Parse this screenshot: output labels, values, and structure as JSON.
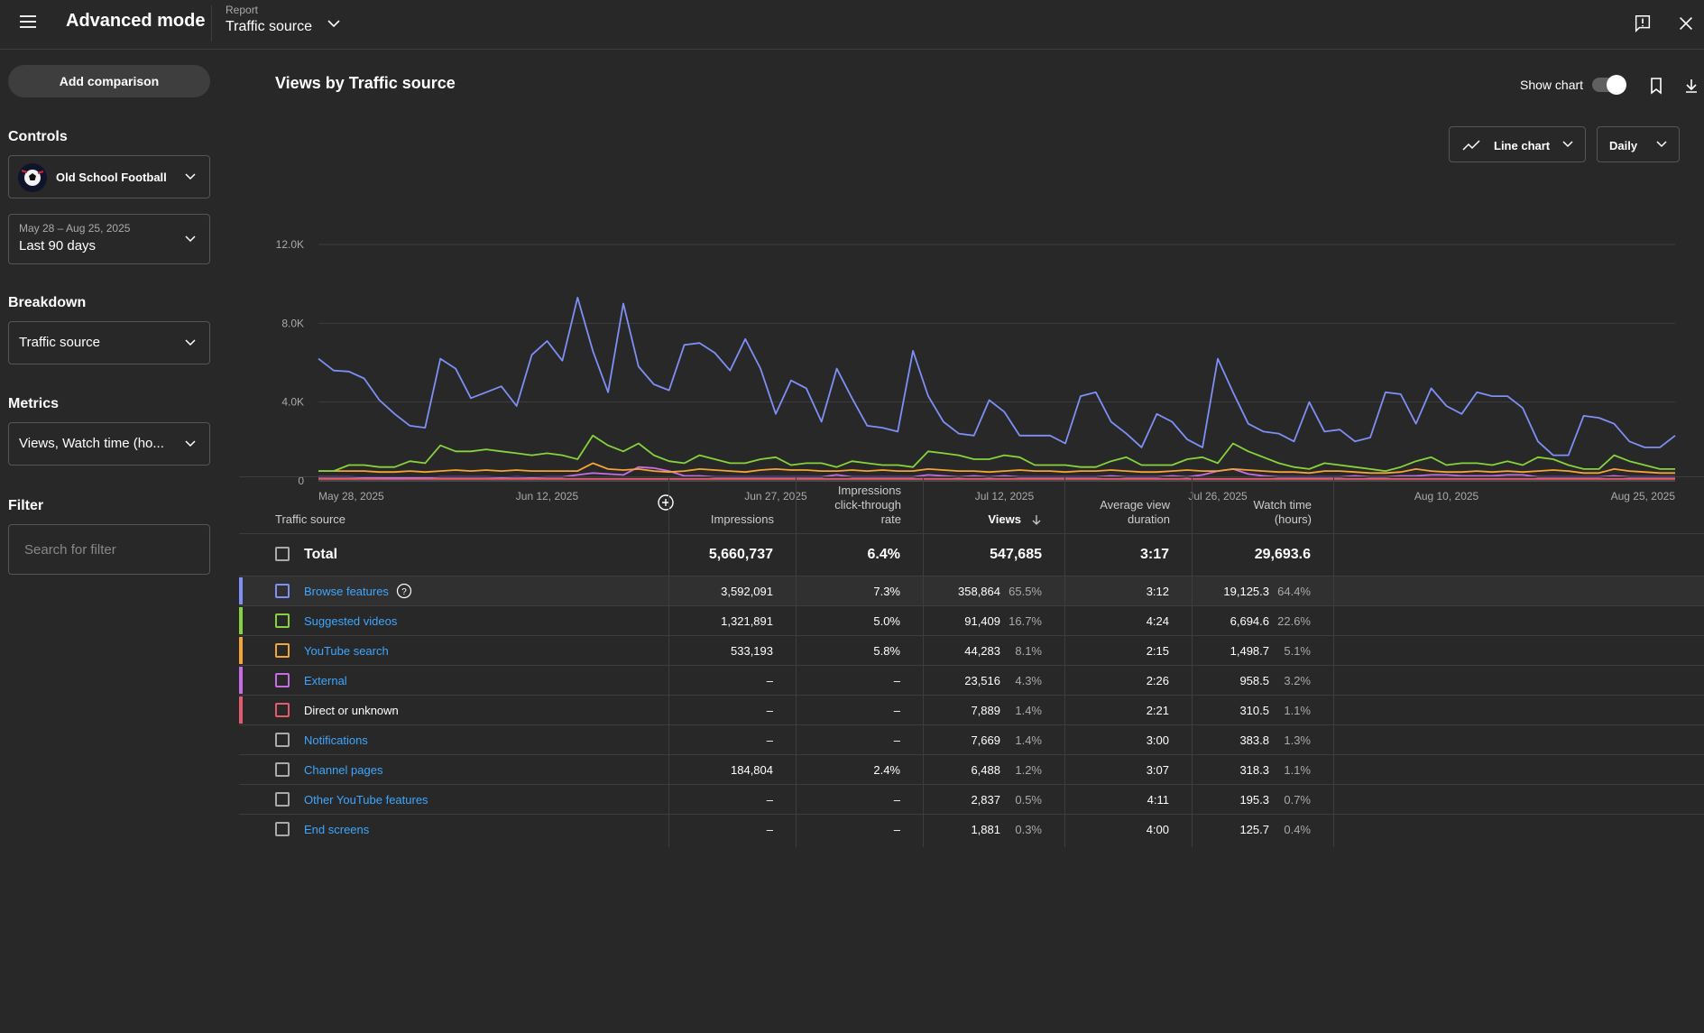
{
  "header": {
    "app_title": "Advanced mode",
    "report_label": "Report",
    "report_value": "Traffic source"
  },
  "sidebar": {
    "add_comparison": "Add comparison",
    "controls_title": "Controls",
    "channel_name": "Old School Football",
    "date_range_sub": "May 28 – Aug 25, 2025",
    "date_range_main": "Last 90 days",
    "breakdown_title": "Breakdown",
    "breakdown_value": "Traffic source",
    "metrics_title": "Metrics",
    "metrics_value": "Views, Watch time (ho...",
    "filter_title": "Filter",
    "filter_placeholder": "Search for filter"
  },
  "chart_section": {
    "title": "Views by Traffic source",
    "show_chart_label": "Show chart",
    "show_chart_on": true,
    "chart_type_label": "Line chart",
    "interval_label": "Daily"
  },
  "chart_data": {
    "type": "line",
    "ylim": [
      0,
      12000
    ],
    "yticks": [
      "0",
      "4.0K",
      "8.0K",
      "12.0K"
    ],
    "ytick_values": [
      0,
      4000,
      8000,
      12000
    ],
    "xticks": [
      "May 28, 2025",
      "Jun 12, 2025",
      "Jun 27, 2025",
      "Jul 12, 2025",
      "Jul 26, 2025",
      "Aug 10, 2025",
      "Aug 25, 2025"
    ],
    "xtick_index": [
      0,
      15,
      30,
      45,
      59,
      74,
      89
    ],
    "grid": true,
    "series": [
      {
        "color": "#7e8ff5",
        "values": [
          6200,
          5600,
          5550,
          5200,
          4100,
          3400,
          2800,
          2700,
          6200,
          5700,
          4200,
          4500,
          4800,
          3800,
          6400,
          7100,
          6100,
          9300,
          6600,
          4500,
          9000,
          5800,
          4900,
          4600,
          6900,
          7000,
          6500,
          5600,
          7200,
          5700,
          3400,
          5100,
          4700,
          3000,
          5700,
          4200,
          2800,
          2700,
          2500,
          6600,
          4300,
          3000,
          2400,
          2300,
          4100,
          3500,
          2300,
          2300,
          2300,
          1900,
          4300,
          4500,
          3000,
          2400,
          1700,
          3400,
          3000,
          2100,
          1700,
          6200,
          4500,
          2900,
          2500,
          2400,
          2000,
          4000,
          2500,
          2600,
          2000,
          2200,
          4500,
          4400,
          2900,
          4700,
          3800,
          3400,
          4500,
          4300,
          4300,
          3700,
          2000,
          1300,
          1300,
          3300,
          3200,
          2900,
          2000,
          1700,
          1700,
          2300
        ]
      },
      {
        "color": "#86d33c",
        "values": [
          500,
          500,
          800,
          800,
          700,
          700,
          1000,
          900,
          1800,
          1500,
          1500,
          1600,
          1500,
          1400,
          1300,
          1400,
          1300,
          1100,
          2300,
          1800,
          1500,
          1900,
          1300,
          1000,
          900,
          1300,
          1100,
          900,
          900,
          1100,
          1200,
          800,
          900,
          900,
          700,
          1000,
          900,
          800,
          800,
          700,
          1500,
          1400,
          1300,
          1100,
          1100,
          1300,
          1200,
          800,
          800,
          800,
          700,
          700,
          1000,
          1200,
          800,
          800,
          800,
          1100,
          1200,
          900,
          1900,
          1500,
          1200,
          900,
          700,
          600,
          900,
          800,
          700,
          600,
          500,
          700,
          1000,
          1200,
          800,
          900,
          900,
          800,
          1000,
          800,
          1200,
          1100,
          800,
          600,
          600,
          1300,
          1000,
          800,
          600,
          600
        ]
      },
      {
        "color": "#f3a535",
        "values": [
          500,
          500,
          500,
          500,
          450,
          450,
          500,
          450,
          500,
          550,
          500,
          550,
          500,
          550,
          500,
          500,
          500,
          500,
          900,
          600,
          550,
          600,
          500,
          450,
          500,
          600,
          550,
          500,
          450,
          550,
          600,
          550,
          550,
          500,
          500,
          550,
          500,
          550,
          500,
          500,
          600,
          550,
          500,
          500,
          450,
          500,
          550,
          500,
          500,
          450,
          500,
          500,
          550,
          500,
          450,
          450,
          500,
          550,
          500,
          500,
          600,
          550,
          500,
          450,
          450,
          400,
          500,
          500,
          450,
          400,
          400,
          450,
          600,
          500,
          450,
          450,
          500,
          450,
          500,
          450,
          500,
          550,
          500,
          400,
          400,
          600,
          500,
          450,
          400,
          400
        ]
      },
      {
        "color": "#c86be6",
        "values": [
          200,
          200,
          200,
          180,
          160,
          150,
          170,
          160,
          200,
          200,
          200,
          200,
          180,
          200,
          180,
          200,
          200,
          300,
          400,
          350,
          300,
          700,
          650,
          500,
          250,
          250,
          200,
          200,
          200,
          200,
          200,
          200,
          200,
          200,
          300,
          200,
          200,
          200,
          200,
          200,
          300,
          250,
          200,
          250,
          200,
          250,
          200,
          200,
          200,
          200,
          200,
          200,
          250,
          200,
          200,
          200,
          250,
          200,
          300,
          500,
          600,
          350,
          250,
          200,
          200,
          200,
          200,
          200,
          250,
          200,
          200,
          250,
          250,
          300,
          300,
          250,
          250,
          250,
          300,
          300,
          200,
          200,
          200,
          200,
          200,
          250,
          200,
          200,
          200,
          200
        ]
      },
      {
        "color": "#e35c6d",
        "values": [
          100,
          100,
          100,
          100,
          100,
          100,
          100,
          100,
          100,
          100,
          100,
          100,
          100,
          100,
          100,
          100,
          100,
          100,
          100,
          100,
          100,
          100,
          100,
          100,
          100,
          100,
          100,
          100,
          100,
          100,
          100,
          100,
          100,
          100,
          100,
          100,
          100,
          100,
          100,
          100,
          100,
          100,
          100,
          100,
          100,
          100,
          100,
          100,
          100,
          100,
          100,
          100,
          100,
          100,
          100,
          100,
          100,
          100,
          100,
          100,
          100,
          100,
          100,
          100,
          100,
          100,
          100,
          100,
          100,
          100,
          100,
          100,
          100,
          100,
          100,
          100,
          100,
          100,
          100,
          100,
          100,
          100,
          100,
          100,
          100,
          100,
          100,
          100,
          100,
          100
        ]
      }
    ]
  },
  "table": {
    "headers": {
      "traffic_source": "Traffic source",
      "impressions": "Impressions",
      "ctr_line1": "Impressions",
      "ctr_line2": "click-through",
      "ctr_line3": "rate",
      "views": "Views",
      "avd_line1": "Average view",
      "avd_line2": "duration",
      "wt_line1": "Watch time",
      "wt_line2": "(hours)"
    },
    "total": {
      "label": "Total",
      "impressions": "5,660,737",
      "ctr": "6.4%",
      "views": "547,685",
      "avd": "3:17",
      "watch_time": "29,693.6"
    },
    "rows": [
      {
        "name": "Browse features",
        "link": true,
        "color": "#7e8ff5",
        "impressions": "3,592,091",
        "ctr": "7.3%",
        "views": "358,864",
        "views_pct": "65.5%",
        "avd": "3:12",
        "watch_time": "19,125.3",
        "wt_pct": "64.4%"
      },
      {
        "name": "Suggested videos",
        "link": true,
        "color": "#86d33c",
        "impressions": "1,321,891",
        "ctr": "5.0%",
        "views": "91,409",
        "views_pct": "16.7%",
        "avd": "4:24",
        "watch_time": "6,694.6",
        "wt_pct": "22.6%"
      },
      {
        "name": "YouTube search",
        "link": true,
        "color": "#f3a535",
        "impressions": "533,193",
        "ctr": "5.8%",
        "views": "44,283",
        "views_pct": "8.1%",
        "avd": "2:15",
        "watch_time": "1,498.7",
        "wt_pct": "5.1%"
      },
      {
        "name": "External",
        "link": true,
        "color": "#c86be6",
        "impressions": "–",
        "ctr": "–",
        "views": "23,516",
        "views_pct": "4.3%",
        "avd": "2:26",
        "watch_time": "958.5",
        "wt_pct": "3.2%"
      },
      {
        "name": "Direct or unknown",
        "link": false,
        "color": "#e35c6d",
        "impressions": "–",
        "ctr": "–",
        "views": "7,889",
        "views_pct": "1.4%",
        "avd": "2:21",
        "watch_time": "310.5",
        "wt_pct": "1.1%"
      },
      {
        "name": "Notifications",
        "link": true,
        "color": "",
        "impressions": "–",
        "ctr": "–",
        "views": "7,669",
        "views_pct": "1.4%",
        "avd": "3:00",
        "watch_time": "383.8",
        "wt_pct": "1.3%"
      },
      {
        "name": "Channel pages",
        "link": true,
        "color": "",
        "impressions": "184,804",
        "ctr": "2.4%",
        "views": "6,488",
        "views_pct": "1.2%",
        "avd": "3:07",
        "watch_time": "318.3",
        "wt_pct": "1.1%"
      },
      {
        "name": "Other YouTube features",
        "link": true,
        "color": "",
        "impressions": "–",
        "ctr": "–",
        "views": "2,837",
        "views_pct": "0.5%",
        "avd": "4:11",
        "watch_time": "195.3",
        "wt_pct": "0.7%"
      },
      {
        "name": "End screens",
        "link": true,
        "color": "",
        "impressions": "–",
        "ctr": "–",
        "views": "1,881",
        "views_pct": "0.3%",
        "avd": "4:00",
        "watch_time": "125.7",
        "wt_pct": "0.4%"
      }
    ]
  }
}
